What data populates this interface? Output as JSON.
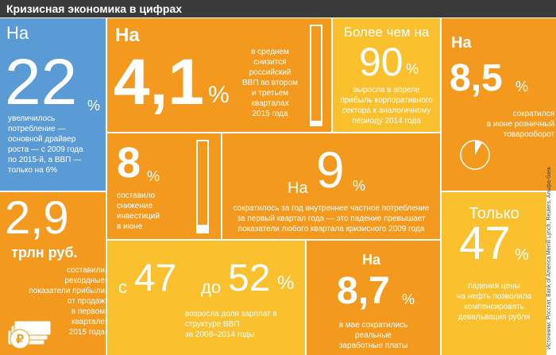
{
  "header": {
    "title": "Кризисная экономика в цифрах"
  },
  "tiles": {
    "t1": {
      "prefix": "На",
      "value": "22",
      "unit": "%",
      "text": [
        "увеличилось",
        "потребление —",
        "основной драйвер",
        "роста — с 2009 года",
        "по 2015-й, а ВВП —",
        "только на 6%"
      ]
    },
    "t2": {
      "prefix": "На",
      "value": "4,1",
      "unit": "%",
      "text": [
        "в среднем",
        "снизится",
        "российский",
        "ВВП во втором",
        "и третьем",
        "кварталах",
        "2015 года"
      ],
      "bar_fill": 0.041
    },
    "t3": {
      "prefix": "Более чем на",
      "value": "90",
      "unit": "%",
      "text": [
        "выросла в апреле",
        "прибыль корпоративного",
        "сектора к аналогичному",
        "периоду 2014 года"
      ]
    },
    "t4": {
      "prefix": "На",
      "value": "8,5",
      "unit": "%",
      "text": [
        "сократился",
        "в июне розничный",
        "товарооборот"
      ],
      "pie_fill": 0.085
    },
    "t5": {
      "value": "8",
      "unit": "%",
      "text": [
        "составило",
        "снижение",
        "инвестиций",
        "в июне"
      ],
      "bar_fill": 0.08
    },
    "t6": {
      "prefix": "На",
      "value": "9",
      "unit": "%",
      "text": [
        "сократилось за год внутреннее частное потребление",
        "за первый квартал года — это падение превышает",
        "показатели любого квартала кризисного 2009 года"
      ]
    },
    "t7": {
      "value": "2,9",
      "unit": "трлн руб.",
      "text": [
        "составили рекордные",
        "показатели прибыли",
        "от продаж",
        "в первом",
        "квартале",
        "2015 года"
      ]
    },
    "t8": {
      "from_prefix": "с",
      "from": "47",
      "to_prefix": "до",
      "to": "52",
      "unit": "%",
      "text": [
        "возросла доля зарплат в структуре ВВП",
        "за 2008–2014 годы"
      ]
    },
    "t9": {
      "prefix": "На",
      "value": "8,7",
      "unit": "%",
      "text": [
        "в мае сократились",
        "реальные",
        "заработные платы"
      ]
    },
    "t10": {
      "prefix": "Только",
      "value": "47",
      "unit": "%",
      "text": [
        "падения цены",
        "на нефть позволила",
        "компенсировать",
        "девальвация рубля"
      ]
    }
  },
  "source": "Источники: Росстат, Bank of America Merrill Lynch, Reuters, Альфа-банк",
  "colors": {
    "blue": "#5b9bd5",
    "orange": "#f39a1e",
    "yellow": "#fbc02d"
  },
  "icons": {
    "money": "banknotes-ruble-icon"
  }
}
